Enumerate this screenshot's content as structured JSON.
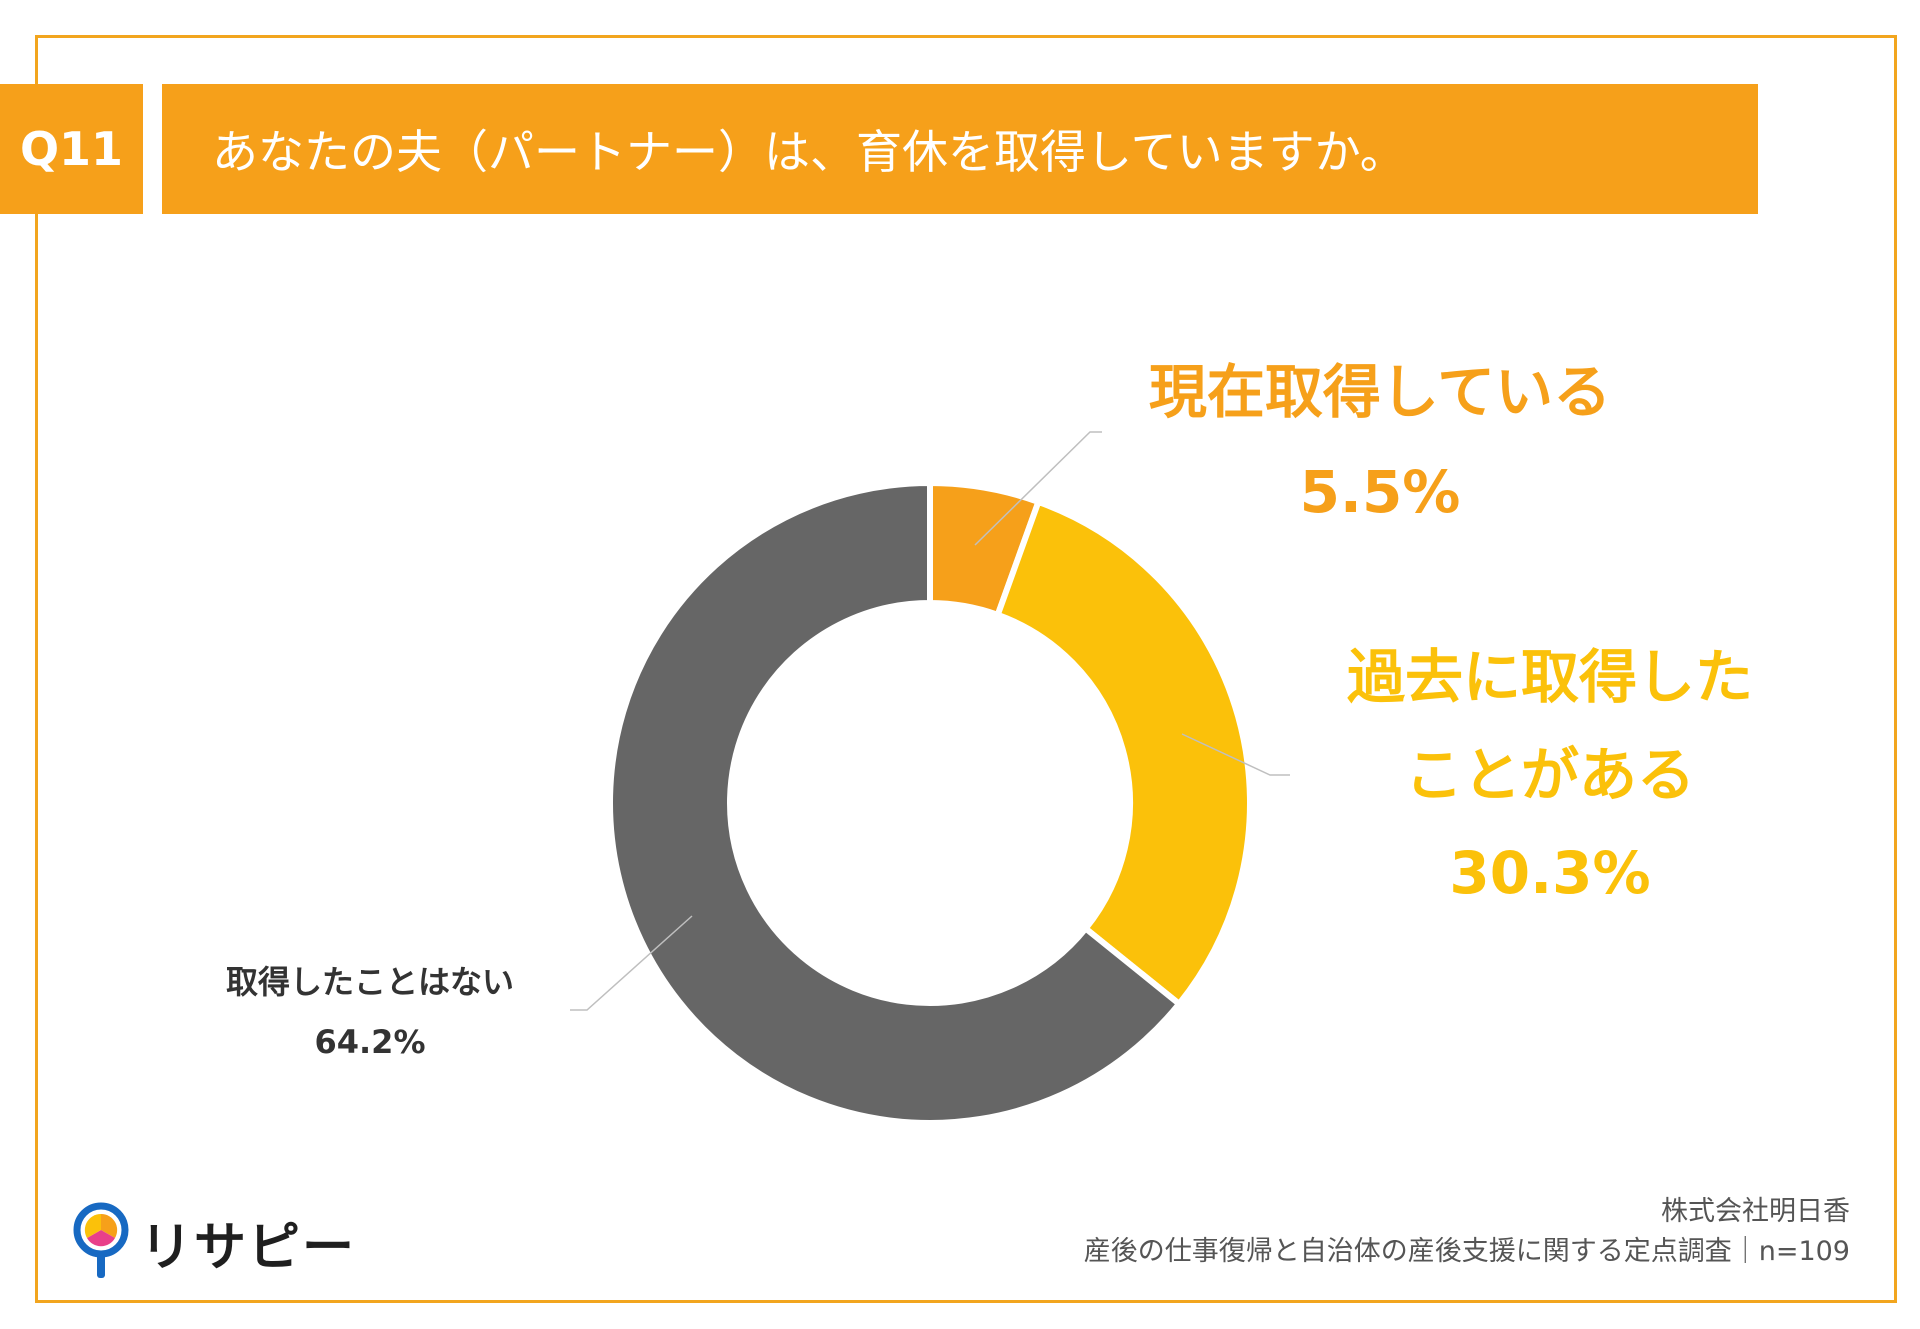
{
  "header": {
    "question_label": "Q11",
    "title": "あなたの夫（パートナー）は、育休を取得していますか。"
  },
  "chart_data": {
    "type": "pie",
    "style": "donut",
    "categories": [
      "現在取得している",
      "過去に取得したことがある",
      "取得したことはない"
    ],
    "values": [
      5.5,
      30.3,
      64.2
    ],
    "value_labels": [
      "5.5%",
      "30.3%",
      "64.2%"
    ],
    "colors": [
      "#f6a01a",
      "#fbc10a",
      "#666666"
    ],
    "label_lines": {
      "current": [
        "現在取得している",
        "5.5%"
      ],
      "past": [
        "過去に取得した",
        "ことがある",
        "30.3%"
      ],
      "never": [
        "取得したことはない",
        "64.2%"
      ]
    }
  },
  "footer": {
    "company": "株式会社明日香",
    "survey": "産後の仕事復帰と自治体の産後支援に関する定点調査｜n=109"
  },
  "logo": {
    "text": "リサピー",
    "icon": "magnifier-pin-icon"
  }
}
